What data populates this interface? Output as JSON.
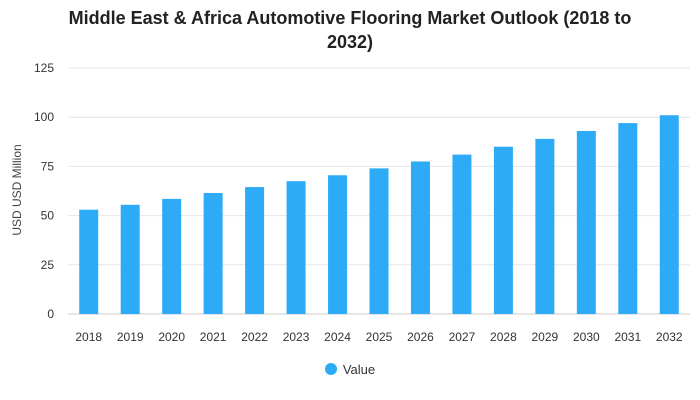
{
  "chart_data": {
    "type": "bar",
    "title": "Middle East & Africa Automotive Flooring Market Outlook (2018 to 2032)",
    "title_lines": [
      "Middle East & Africa Automotive Flooring Market Outlook (2018 to",
      "2032)"
    ],
    "xlabel": "",
    "ylabel": "USD USD Million",
    "ylim": [
      0,
      125
    ],
    "yticks": [
      "0",
      "25",
      "50",
      "75",
      "100",
      "125"
    ],
    "categories": [
      "2018",
      "2019",
      "2020",
      "2021",
      "2022",
      "2023",
      "2024",
      "2025",
      "2026",
      "2027",
      "2028",
      "2029",
      "2030",
      "2031",
      "2032"
    ],
    "series": [
      {
        "name": "Value",
        "values": [
          53,
          55.5,
          58.5,
          61.5,
          64.5,
          67.5,
          70.5,
          74,
          77.5,
          81,
          85,
          89,
          93,
          97,
          101
        ]
      }
    ],
    "grid": true,
    "legend_position": "bottom",
    "colors": {
      "bar": "#2eabf7",
      "grid": "#e6e6e6",
      "axis": "#cccccc"
    }
  }
}
